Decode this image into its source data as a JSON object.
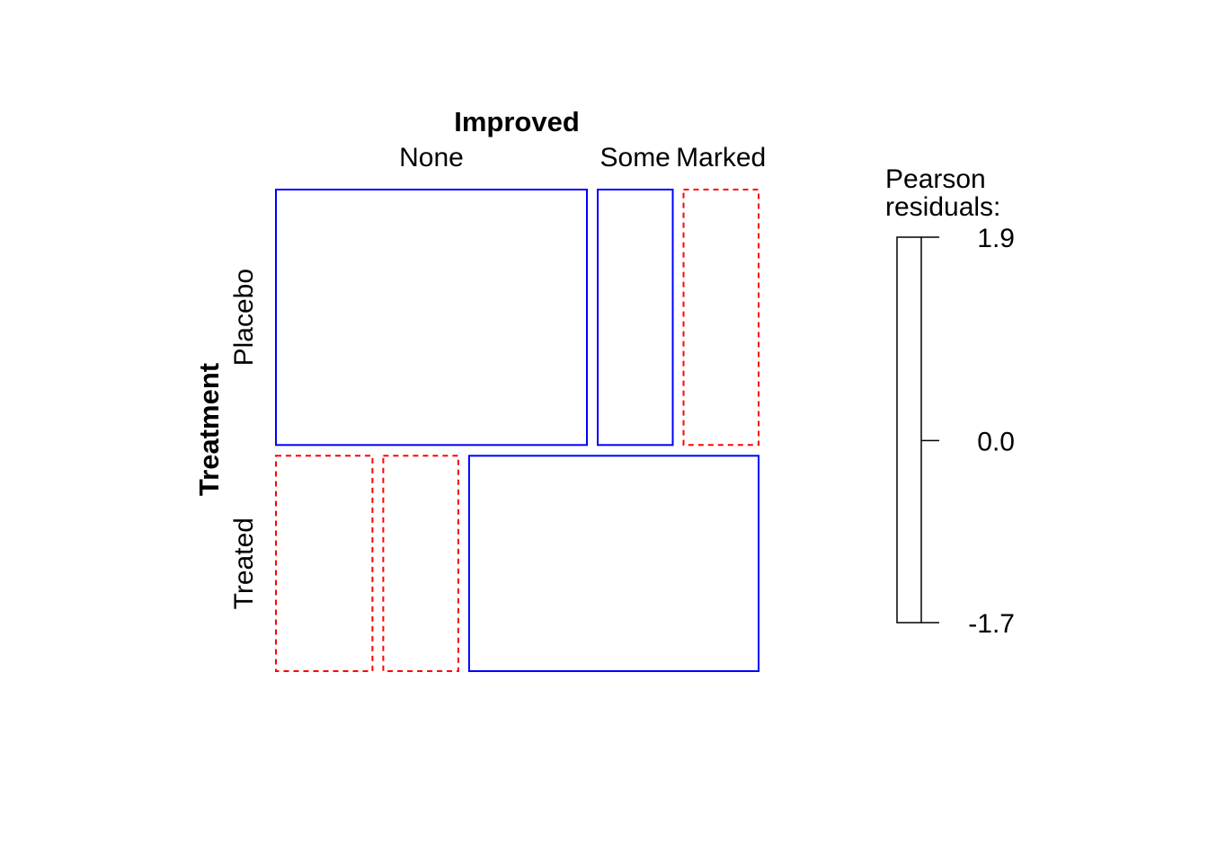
{
  "chart_data": {
    "type": "mosaic",
    "column_variable": "Improved",
    "row_variable": "Treatment",
    "columns": [
      "None",
      "Some",
      "Marked"
    ],
    "rows": [
      "Placebo",
      "Treated"
    ],
    "row_proportions": [
      0.5426,
      0.4574
    ],
    "cell_proportions": [
      [
        0.6744,
        0.1628,
        0.1628
      ],
      [
        0.2093,
        0.1628,
        0.6279
      ]
    ],
    "residual_sign": [
      [
        "positive",
        "positive",
        "negative"
      ],
      [
        "negative",
        "negative",
        "positive"
      ]
    ],
    "legend": {
      "title_line1": "Pearson",
      "title_line2": "residuals:",
      "max": 1.9,
      "mid": 0.0,
      "min": -1.7,
      "max_label": "1.9",
      "mid_label": "0.0",
      "min_label": "-1.7"
    },
    "colors": {
      "positive": "#0000ff",
      "negative": "#ff0000",
      "text": "#000000"
    }
  }
}
